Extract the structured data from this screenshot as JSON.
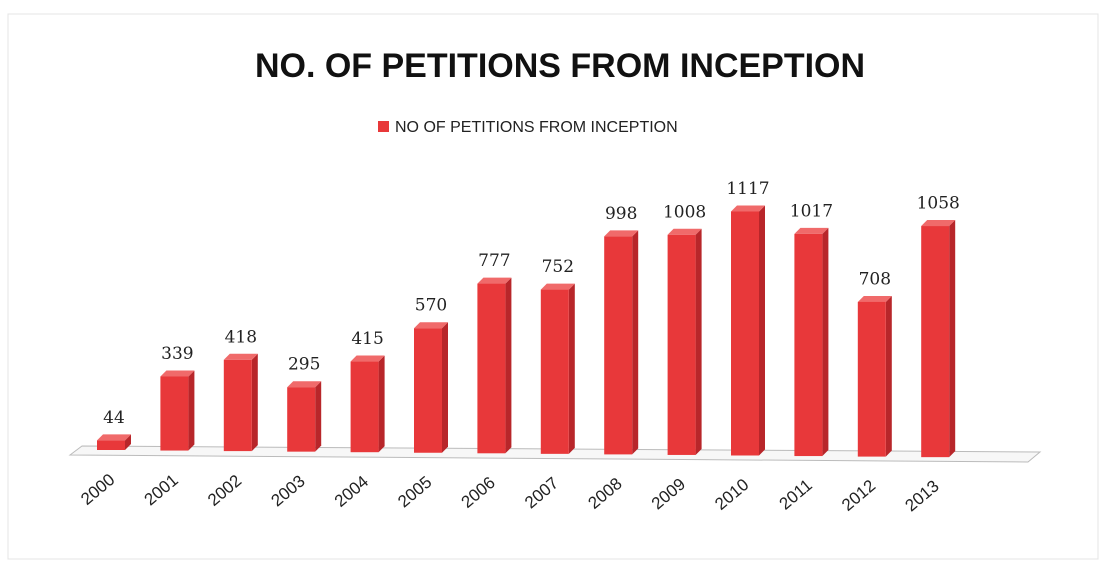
{
  "chart_data": {
    "type": "bar3d",
    "title": "NO. OF PETITIONS FROM INCEPTION",
    "categories": [
      "2000",
      "2001",
      "2002",
      "2003",
      "2004",
      "2005",
      "2006",
      "2007",
      "2008",
      "2009",
      "2010",
      "2011",
      "2012",
      "2013"
    ],
    "series": [
      {
        "name": "NO OF PETITIONS FROM INCEPTION",
        "color": "#e8383a",
        "values": [
          44,
          339,
          418,
          295,
          415,
          570,
          777,
          752,
          998,
          1008,
          1117,
          1017,
          708,
          1058
        ]
      }
    ],
    "legend": "top"
  }
}
